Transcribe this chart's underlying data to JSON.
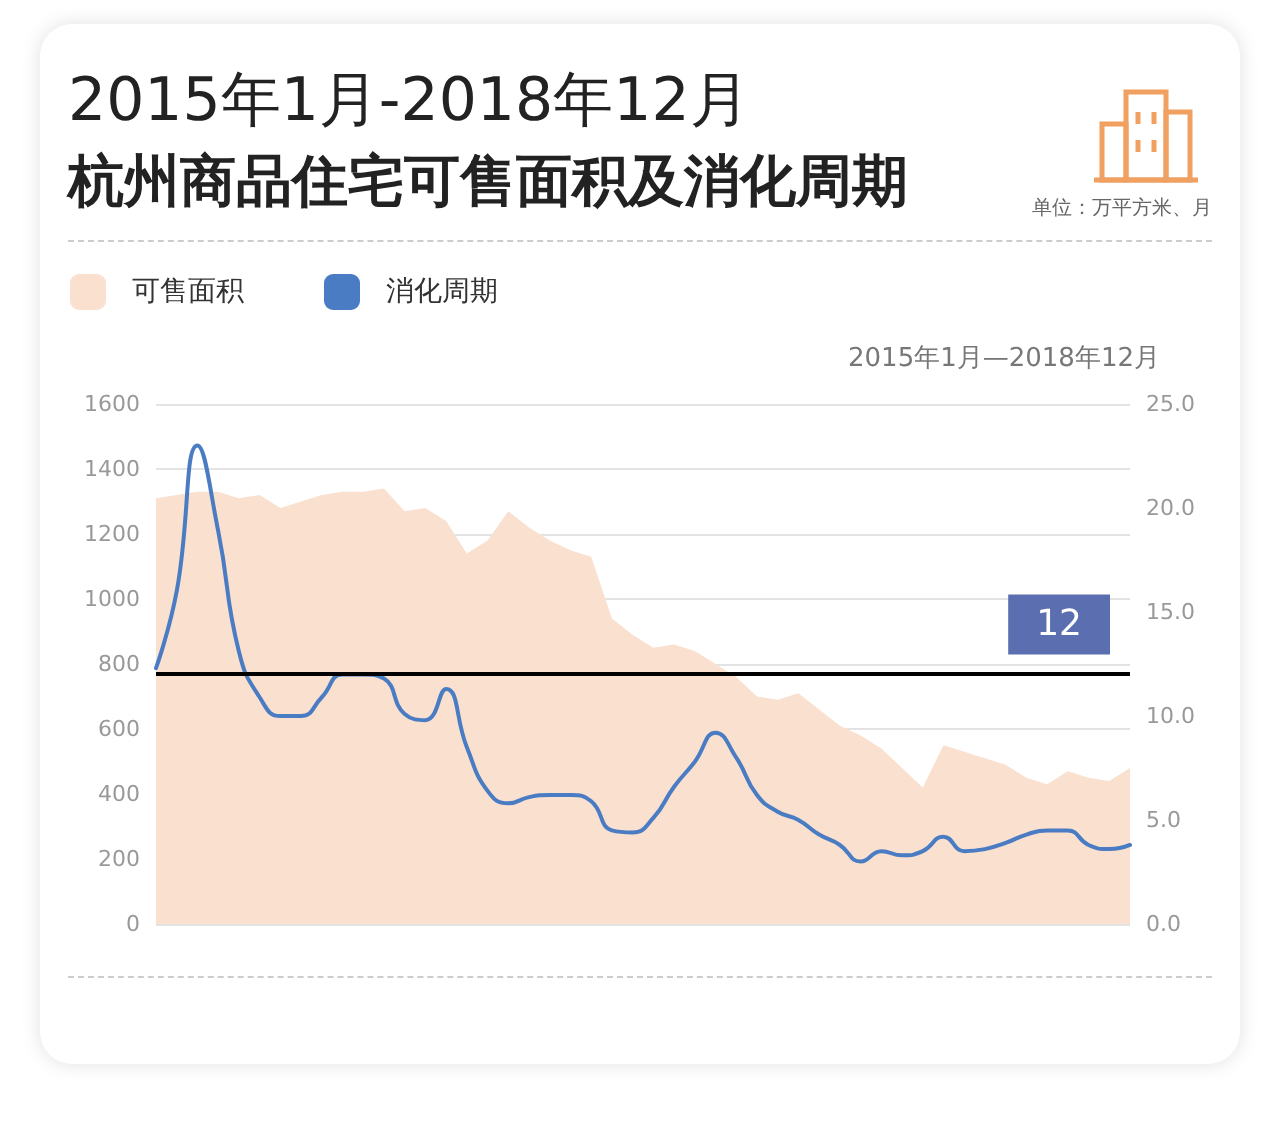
{
  "chart_data": {
    "type": "area",
    "title": "2015年1月-2018年12月",
    "subtitle": "杭州商品住宅可售面积及消化周期",
    "annotations": [
      "单位：万平方米、月",
      "2015年1月—2018年12月"
    ],
    "categories": [
      null,
      null,
      null,
      null,
      null,
      null,
      null,
      null,
      null,
      null,
      null,
      null,
      null,
      null,
      null,
      null,
      null,
      null,
      null,
      null,
      null,
      null,
      null,
      null,
      null,
      null,
      null,
      null,
      null,
      null,
      null,
      null,
      null,
      null,
      null,
      null,
      null,
      null,
      null,
      null,
      null,
      null,
      null,
      null,
      null,
      null,
      null,
      null
    ],
    "series": [
      {
        "name": "可售面积",
        "type": "area",
        "color": "#f9e0cf",
        "values": [
          1310,
          1320,
          1330,
          1330,
          1310,
          1320,
          1280,
          1300,
          1320,
          1330,
          1330,
          1340,
          1270,
          1280,
          1240,
          1140,
          1180,
          1270,
          1220,
          1180,
          1150,
          1130,
          940,
          890,
          850,
          860,
          840,
          800,
          760,
          700,
          690,
          710,
          660,
          610,
          580,
          540,
          480,
          420,
          550,
          530,
          510,
          490,
          450,
          430,
          470,
          450,
          440,
          480
        ]
      },
      {
        "name": "消化周期",
        "type": "line",
        "axis": "y2",
        "color": "#4a7cc4",
        "values": [
          12.3,
          16.0,
          23.0,
          18.9,
          13.1,
          10.9,
          10.0,
          10.0,
          10.9,
          12.0,
          12.0,
          11.8,
          10.1,
          9.8,
          11.3,
          8.5,
          6.4,
          5.8,
          6.1,
          6.2,
          6.2,
          5.9,
          4.5,
          4.4,
          5.1,
          6.6,
          7.8,
          9.2,
          8.0,
          6.2,
          5.4,
          5.0,
          4.3,
          3.8,
          3.0,
          3.5,
          3.3,
          3.5,
          4.2,
          3.5,
          3.6,
          3.9,
          4.3,
          4.5,
          4.5,
          3.8,
          3.6,
          3.8
        ]
      }
    ],
    "ylim": [
      0,
      1600
    ],
    "yticks": [
      0,
      200,
      400,
      600,
      800,
      1000,
      1200,
      1400,
      1600
    ],
    "y2lim": [
      0,
      25
    ],
    "y2ticks": [
      {
        "value": 0,
        "label": "0.0"
      },
      {
        "value": 5,
        "label": "5.0"
      },
      {
        "value": 10,
        "label": "10.0"
      },
      {
        "value": 15,
        "label": "15.0"
      },
      {
        "value": 20,
        "label": "20.0"
      },
      {
        "value": 25,
        "label": "25.0"
      }
    ],
    "ref_lines": [
      {
        "axis": "y2",
        "value": 12,
        "label": "12",
        "color": "#000000"
      }
    ],
    "grid": "y",
    "legend": "top left",
    "marker": "none",
    "line_style": "solid"
  }
}
